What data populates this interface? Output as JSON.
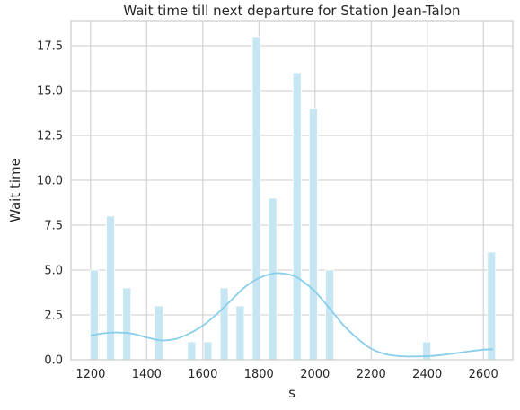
{
  "chart_data": {
    "type": "bar",
    "title": "Wait time till next departure for Station Jean-Talon",
    "xlabel": "s",
    "ylabel": "Wait time",
    "xlim": [
      1130,
      2705
    ],
    "ylim": [
      0,
      18.9
    ],
    "xticks": [
      1200,
      1400,
      1600,
      1800,
      2000,
      2200,
      2400,
      2600
    ],
    "yticks": [
      0.0,
      2.5,
      5.0,
      7.5,
      10.0,
      12.5,
      15.0,
      17.5
    ],
    "xtick_labels": [
      "1200",
      "1400",
      "1600",
      "1800",
      "2000",
      "2200",
      "2400",
      "2600"
    ],
    "ytick_labels": [
      "0.0",
      "2.5",
      "5.0",
      "7.5",
      "10.0",
      "12.5",
      "15.0",
      "17.5"
    ],
    "grid": true,
    "bin_width": 28.9,
    "bars": [
      {
        "x": 1213,
        "value": 5
      },
      {
        "x": 1271,
        "value": 8
      },
      {
        "x": 1329,
        "value": 4
      },
      {
        "x": 1444,
        "value": 3
      },
      {
        "x": 1560,
        "value": 1
      },
      {
        "x": 1618,
        "value": 1
      },
      {
        "x": 1676,
        "value": 4
      },
      {
        "x": 1733,
        "value": 3
      },
      {
        "x": 1791,
        "value": 18
      },
      {
        "x": 1849,
        "value": 9
      },
      {
        "x": 1936,
        "value": 16
      },
      {
        "x": 1994,
        "value": 14
      },
      {
        "x": 2052,
        "value": 5
      },
      {
        "x": 2398,
        "value": 1
      },
      {
        "x": 2629,
        "value": 6
      }
    ],
    "kde": {
      "x": [
        1200,
        1250,
        1300,
        1350,
        1400,
        1450,
        1500,
        1550,
        1600,
        1650,
        1700,
        1750,
        1800,
        1850,
        1880,
        1920,
        1950,
        2000,
        2050,
        2100,
        2150,
        2200,
        2250,
        2300,
        2350,
        2400,
        2450,
        2500,
        2550,
        2600,
        2635
      ],
      "y": [
        1.35,
        1.48,
        1.52,
        1.45,
        1.25,
        1.08,
        1.15,
        1.45,
        1.9,
        2.55,
        3.3,
        4.05,
        4.55,
        4.8,
        4.82,
        4.7,
        4.45,
        3.8,
        2.9,
        1.95,
        1.2,
        0.62,
        0.32,
        0.2,
        0.18,
        0.2,
        0.26,
        0.36,
        0.47,
        0.56,
        0.58
      ]
    },
    "colors": {
      "bar_fill": "#c5e6f2",
      "bar_stroke": "#ffffff",
      "kde_line": "#87ceeb",
      "grid": "#cccccc",
      "spine": "#cccccc",
      "text": "#262626"
    }
  }
}
